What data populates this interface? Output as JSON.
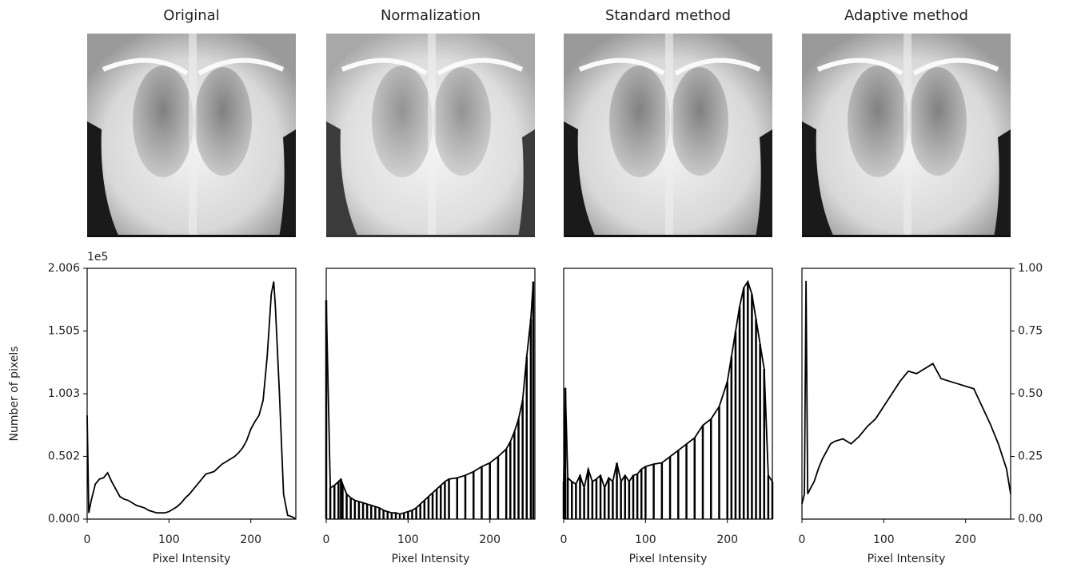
{
  "chart_data": [
    {
      "type": "line",
      "title": "Original",
      "xlabel": "Pixel Intensity",
      "ylabel": "Number of pixels",
      "y_offset_label": "1e5",
      "color": "#000000",
      "x": [
        0,
        2,
        5,
        10,
        15,
        20,
        25,
        30,
        35,
        40,
        45,
        50,
        55,
        60,
        65,
        70,
        75,
        80,
        85,
        90,
        95,
        100,
        105,
        110,
        115,
        120,
        125,
        130,
        135,
        140,
        145,
        150,
        155,
        160,
        165,
        170,
        175,
        180,
        185,
        190,
        195,
        200,
        205,
        210,
        215,
        220,
        225,
        228,
        230,
        235,
        240,
        245,
        250,
        255
      ],
      "values": [
        0.83,
        0.05,
        0.15,
        0.28,
        0.32,
        0.33,
        0.37,
        0.3,
        0.24,
        0.18,
        0.16,
        0.15,
        0.13,
        0.11,
        0.1,
        0.09,
        0.07,
        0.06,
        0.05,
        0.05,
        0.05,
        0.06,
        0.08,
        0.1,
        0.13,
        0.17,
        0.2,
        0.24,
        0.28,
        0.32,
        0.36,
        0.37,
        0.38,
        0.41,
        0.44,
        0.46,
        0.48,
        0.5,
        0.53,
        0.57,
        0.63,
        0.72,
        0.78,
        0.83,
        0.95,
        1.3,
        1.8,
        1.9,
        1.7,
        1.0,
        0.2,
        0.03,
        0.02,
        0.0
      ],
      "xlim": [
        0,
        255
      ],
      "xticks": [
        0,
        100,
        200
      ],
      "ylim": [
        0,
        2.006
      ],
      "yticks": [
        {
          "value": 0,
          "label": "0.000"
        },
        0.502,
        1.003,
        1.505,
        2.006
      ]
    },
    {
      "type": "bar",
      "title": "Normalization",
      "xlabel": "Pixel Intensity",
      "color": "#000000",
      "x": [
        0,
        5,
        10,
        15,
        18,
        20,
        25,
        30,
        35,
        40,
        45,
        50,
        55,
        60,
        65,
        70,
        75,
        80,
        85,
        90,
        95,
        100,
        105,
        110,
        115,
        120,
        125,
        130,
        135,
        140,
        145,
        150,
        160,
        170,
        180,
        190,
        200,
        210,
        220,
        225,
        230,
        235,
        240,
        245,
        250,
        253
      ],
      "values": [
        1.75,
        0.25,
        0.27,
        0.3,
        0.32,
        0.28,
        0.2,
        0.17,
        0.15,
        0.14,
        0.13,
        0.12,
        0.11,
        0.1,
        0.09,
        0.07,
        0.06,
        0.05,
        0.05,
        0.04,
        0.05,
        0.06,
        0.07,
        0.09,
        0.12,
        0.15,
        0.18,
        0.21,
        0.24,
        0.27,
        0.3,
        0.32,
        0.33,
        0.35,
        0.38,
        0.42,
        0.45,
        0.5,
        0.56,
        0.62,
        0.7,
        0.8,
        0.95,
        1.3,
        1.6,
        1.9
      ],
      "xlim": [
        0,
        255
      ],
      "xticks": [
        0,
        100,
        200
      ],
      "ylim": [
        0,
        2.006
      ]
    },
    {
      "type": "bar",
      "title": "Standard method",
      "xlabel": "Pixel Intensity",
      "color": "#000000",
      "x": [
        0,
        2,
        5,
        10,
        15,
        20,
        25,
        30,
        35,
        40,
        45,
        50,
        55,
        60,
        65,
        70,
        75,
        80,
        85,
        90,
        95,
        100,
        110,
        120,
        130,
        140,
        150,
        160,
        170,
        180,
        190,
        200,
        205,
        210,
        215,
        220,
        225,
        230,
        235,
        240,
        245,
        250,
        255
      ],
      "values": [
        0.3,
        1.05,
        0.33,
        0.3,
        0.28,
        0.35,
        0.25,
        0.4,
        0.3,
        0.32,
        0.35,
        0.25,
        0.33,
        0.3,
        0.45,
        0.3,
        0.35,
        0.3,
        0.35,
        0.36,
        0.4,
        0.42,
        0.44,
        0.45,
        0.5,
        0.55,
        0.6,
        0.65,
        0.75,
        0.8,
        0.9,
        1.1,
        1.3,
        1.5,
        1.7,
        1.85,
        1.9,
        1.8,
        1.6,
        1.4,
        1.2,
        0.35,
        0.3
      ],
      "xlim": [
        0,
        255
      ],
      "xticks": [
        0,
        100,
        200
      ],
      "ylim": [
        0,
        2.006
      ]
    },
    {
      "type": "line",
      "title": "Adaptive method",
      "xlabel": "Pixel Intensity",
      "x": [
        0,
        3,
        5,
        7,
        10,
        15,
        20,
        25,
        30,
        35,
        40,
        50,
        60,
        70,
        80,
        90,
        100,
        110,
        120,
        130,
        140,
        150,
        160,
        170,
        180,
        190,
        200,
        210,
        220,
        230,
        240,
        250,
        255
      ],
      "series": [
        {
          "axis": "y2",
          "color": "#000000",
          "values": [
            0.06,
            0.1,
            0.95,
            0.1,
            0.12,
            0.15,
            0.2,
            0.24,
            0.27,
            0.3,
            0.31,
            0.32,
            0.3,
            0.33,
            0.37,
            0.4,
            0.45,
            0.5,
            0.55,
            0.59,
            0.58,
            0.6,
            0.62,
            0.56,
            0.55,
            0.54,
            0.53,
            0.52,
            0.45,
            0.38,
            0.3,
            0.2,
            0.1
          ]
        }
      ],
      "xlim": [
        0,
        255
      ],
      "xticks": [
        0,
        100,
        200
      ],
      "y2lim": [
        0,
        1
      ],
      "y2ticks": [
        {
          "value": 0,
          "label": "0.00"
        },
        0.25,
        {
          "value": 0.5,
          "label": "0.50"
        },
        0.75,
        {
          "value": 1,
          "label": "1.00"
        }
      ]
    }
  ]
}
